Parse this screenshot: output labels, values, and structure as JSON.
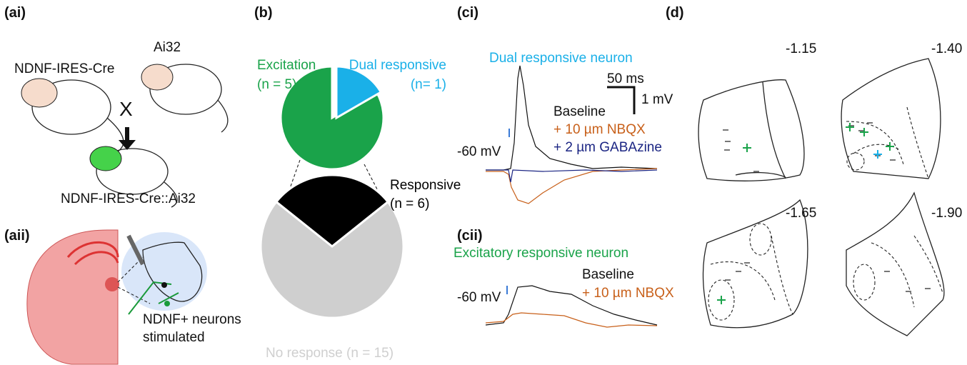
{
  "labels": {
    "ai": "(ai)",
    "aii": "(aii)",
    "b": "(b)",
    "ci": "(ci)",
    "cii": "(cii)",
    "d": "(d)"
  },
  "panel_a": {
    "parent1": "NDNF-IRES-Cre",
    "parent2": "Ai32",
    "cross": "X",
    "offspring": "NDNF-IRES-Cre::Ai32",
    "stim_line1": "NDNF+ neurons",
    "stim_line2": "stimulated"
  },
  "chart_data": [
    {
      "type": "pie",
      "categories": [
        "Excitation",
        "Dual responsive"
      ],
      "values": [
        5,
        1
      ],
      "value_labels": [
        "(n = 5)",
        "(n= 1)"
      ],
      "colors": [
        "#1aa34a",
        "#1ab0e8"
      ]
    },
    {
      "type": "pie",
      "categories": [
        "Responsive",
        "No response"
      ],
      "values": [
        6,
        15
      ],
      "value_labels": [
        "(n = 6)",
        "(n = 15)"
      ],
      "colors": [
        "#000000",
        "#cfcfcf"
      ]
    }
  ],
  "panel_ci": {
    "title": "Dual responsive neuron",
    "scale_time": "50 ms",
    "scale_voltage": "1 mV",
    "baseline": "Baseline",
    "nbqx": "+ 10 µm NBQX",
    "gabazine": "+ 2 µm GABAzine",
    "holding": "-60 mV"
  },
  "panel_cii": {
    "title": "Excitatory responsive neuron",
    "baseline": "Baseline",
    "nbqx": "+ 10 µm NBQX",
    "holding": "-60 mV"
  },
  "panel_d": {
    "sections": [
      "-1.15",
      "-1.40",
      "-1.65",
      "-1.90"
    ]
  }
}
